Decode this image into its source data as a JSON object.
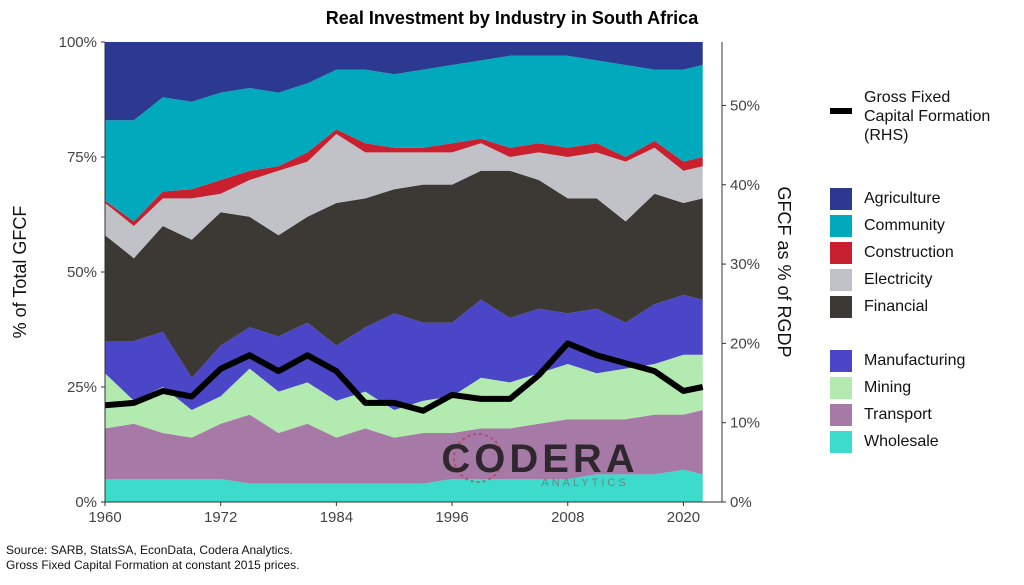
{
  "chart_data": {
    "type": "stacked_area",
    "title": "Real Investment by Industry in South Africa",
    "y_label": "% of Total GFCF",
    "y2_label": "GFCF as % of RGDP",
    "x": [
      1960,
      1963,
      1966,
      1969,
      1972,
      1975,
      1978,
      1981,
      1984,
      1987,
      1990,
      1993,
      1996,
      1999,
      2002,
      2005,
      2008,
      2011,
      2014,
      2017,
      2020,
      2022
    ],
    "xlim": [
      1960,
      2024
    ],
    "xticks": [
      1960,
      1972,
      1984,
      1996,
      2008,
      2020
    ],
    "ylim": [
      0,
      100
    ],
    "yticks": [
      {
        "value": 0,
        "label": "0%"
      },
      {
        "value": 25,
        "label": "25%"
      },
      {
        "value": 50,
        "label": "50%"
      },
      {
        "value": 75,
        "label": "75%"
      },
      {
        "value": 100,
        "label": "100%"
      }
    ],
    "y2lim": [
      0,
      58
    ],
    "y2ticks": [
      {
        "value": 0,
        "label": "0%"
      },
      {
        "value": 10,
        "label": "10%"
      },
      {
        "value": 20,
        "label": "20%"
      },
      {
        "value": 30,
        "label": "30%"
      },
      {
        "value": 40,
        "label": "40%"
      },
      {
        "value": 50,
        "label": "50%"
      }
    ],
    "series": [
      {
        "name": "Agriculture",
        "color": "#2b3990",
        "values": [
          17,
          17,
          12,
          13,
          11,
          10,
          11,
          9,
          6,
          6,
          7,
          6,
          5,
          4,
          3,
          3,
          3,
          4,
          5,
          6,
          6,
          5
        ]
      },
      {
        "name": "Community",
        "color": "#00a9bc",
        "values": [
          17.5,
          22,
          20.5,
          19,
          19,
          18,
          16,
          15,
          13,
          16,
          16,
          17,
          17,
          17,
          20,
          19,
          20,
          18,
          20,
          15.5,
          20,
          20
        ]
      },
      {
        "name": "Construction",
        "color": "#c8202f",
        "values": [
          0.5,
          1,
          1.5,
          2,
          3,
          2,
          1,
          2,
          1,
          2,
          1,
          1,
          2,
          1,
          2,
          2,
          2,
          2,
          1,
          1.5,
          2,
          2
        ]
      },
      {
        "name": "Electricity",
        "color": "#c0c2c8",
        "values": [
          7,
          7,
          6,
          9,
          4,
          8,
          14,
          12,
          15,
          10,
          8,
          7,
          7,
          6,
          3,
          6,
          9,
          10,
          13,
          10,
          7,
          7
        ]
      },
      {
        "name": "Financial",
        "color": "#3c3834",
        "values": [
          23,
          18,
          23,
          30,
          29,
          24,
          22,
          23,
          31,
          28,
          27,
          30,
          30,
          28,
          32,
          28,
          25,
          24,
          22,
          24,
          20,
          22
        ]
      },
      {
        "name": "Manufacturing",
        "color": "#4b45c8",
        "values": [
          7,
          13,
          12,
          7,
          11,
          9,
          12,
          13,
          12,
          14,
          21,
          17,
          16,
          17,
          14,
          14,
          11,
          14,
          10,
          13,
          13,
          12
        ]
      },
      {
        "name": "Mining",
        "color": "#b2eab0",
        "values": [
          12,
          5,
          10,
          6,
          6,
          10,
          9,
          9,
          8,
          8,
          6,
          7,
          8,
          11,
          10,
          11,
          12,
          10,
          11,
          11,
          13,
          12
        ]
      },
      {
        "name": "Transport",
        "color": "#a679a6",
        "values": [
          11,
          12,
          10,
          9,
          12,
          15,
          11,
          13,
          10,
          12,
          10,
          11,
          10,
          11,
          11,
          12,
          13,
          12,
          12,
          13,
          12,
          14
        ]
      },
      {
        "name": "Wholesale",
        "color": "#3ddbcc",
        "values": [
          5,
          5,
          5,
          5,
          5,
          4,
          4,
          4,
          4,
          4,
          4,
          4,
          5,
          5,
          5,
          5,
          5,
          6,
          6,
          6,
          7,
          6
        ]
      },
      {
        "name": "Gross Fixed Capital Formation (RHS)",
        "type": "line",
        "axis": "y2",
        "color": "#000000",
        "values": [
          12.2,
          12.5,
          14,
          13.3,
          16.8,
          18.5,
          16.5,
          18.5,
          16.5,
          12.5,
          12.5,
          11.5,
          13.5,
          13,
          13,
          16,
          20,
          18.5,
          17.5,
          16.5,
          14,
          14.5
        ]
      }
    ],
    "watermark": {
      "name": "CODERA",
      "sub": "ANALYTICS"
    },
    "notes": [
      "Source: SARB, StatsSA, EconData, Codera Analytics.",
      "Gross Fixed Capital Formation at constant 2015 prices."
    ]
  }
}
